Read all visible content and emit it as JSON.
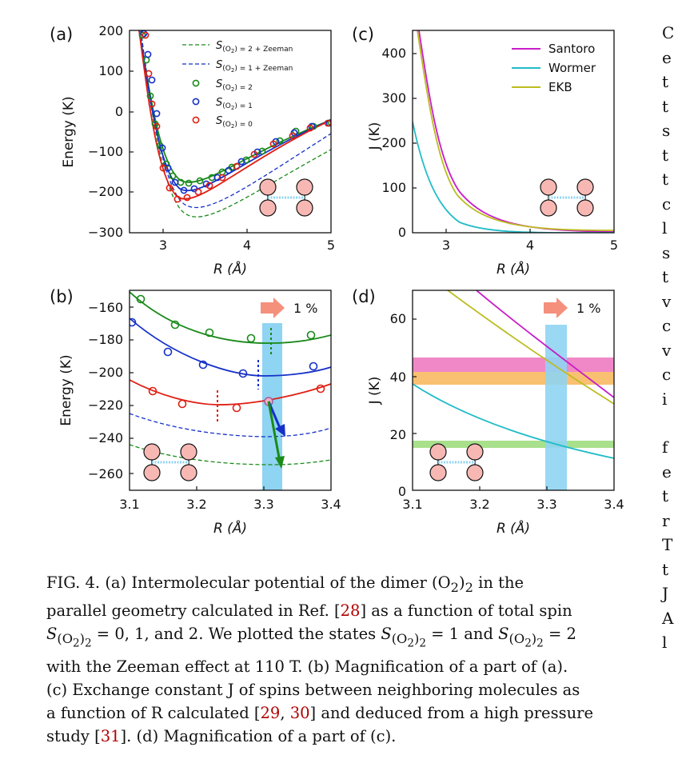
{
  "colors": {
    "green": "#1a8a1a",
    "blue": "#1530c8",
    "red": "#e01f14",
    "santoro": "#c81ec8",
    "wormer": "#22bcc8",
    "ekb": "#bcbc20",
    "band_blue": "#8fd4f2",
    "band_pink": "#f088c8",
    "band_orange": "#f8c070",
    "band_green": "#a8e08c",
    "arrow_salmon": "#f4907c",
    "molecule": "#f7b8b4"
  },
  "icons": {
    "molecule": "o2-dimer-icon",
    "arrow": "right-arrow-icon"
  },
  "chart_data": [
    {
      "panel": "(a)",
      "type": "line",
      "xlabel": "R (Å)",
      "ylabel": "Energy (K)",
      "xlim": [
        2.6,
        5.0
      ],
      "ylim": [
        -300,
        200
      ],
      "xticks": [
        "3",
        "4",
        "5"
      ],
      "yticks": [
        "200",
        "100",
        "0",
        "−100",
        "−200",
        "−300"
      ],
      "legend_position": "top-right",
      "legend": [
        "S(O2)2 = 2 + Zeeman",
        "S(O2)2 = 1 + Zeeman",
        "S(O2)2 = 2",
        "S(O2)2 = 1",
        "S(O2)2 = 0"
      ],
      "curve_minima": [
        {
          "series": "S=2",
          "x": 3.3,
          "y": -182
        },
        {
          "series": "S=1",
          "x": 3.3,
          "y": -201
        },
        {
          "series": "S=0",
          "x": 3.23,
          "y": -221
        },
        {
          "series": "S=1 + Zeeman",
          "x": 3.3,
          "y": -238
        },
        {
          "series": "S=2 + Zeeman",
          "x": 3.3,
          "y": -256
        }
      ]
    },
    {
      "panel": "(b)",
      "type": "line",
      "xlabel": "R (Å)",
      "ylabel": "Energy (K)",
      "xlim": [
        3.1,
        3.4
      ],
      "ylim": [
        -270,
        -150
      ],
      "xticks": [
        "3.1",
        "3.2",
        "3.3",
        "3.4"
      ],
      "yticks": [
        "−160",
        "−180",
        "−200",
        "−220",
        "−240",
        "−260"
      ],
      "annotation": "1 %",
      "highlight_x": [
        3.3,
        3.33
      ],
      "points": {
        "S2": [
          [
            3.12,
            -156
          ],
          [
            3.18,
            -171
          ],
          [
            3.22,
            -176
          ],
          [
            3.28,
            -180
          ],
          [
            3.37,
            -177
          ]
        ],
        "S1": [
          [
            3.1,
            -170
          ],
          [
            3.16,
            -188
          ],
          [
            3.21,
            -195
          ],
          [
            3.27,
            -200
          ],
          [
            3.375,
            -196
          ]
        ],
        "S0": [
          [
            3.14,
            -211
          ],
          [
            3.18,
            -218
          ],
          [
            3.26,
            -220
          ],
          [
            3.31,
            -216
          ],
          [
            3.385,
            -209
          ]
        ]
      },
      "minima_markers": [
        {
          "series": "S=2",
          "x": 3.31
        },
        {
          "series": "S=1",
          "x": 3.28
        },
        {
          "series": "S=0",
          "x": 3.23
        }
      ]
    },
    {
      "panel": "(c)",
      "type": "line",
      "xlabel": "R (Å)",
      "ylabel": "J (K)",
      "xlim": [
        2.6,
        5.0
      ],
      "ylim": [
        0,
        450
      ],
      "xticks": [
        "3",
        "4",
        "5"
      ],
      "yticks": [
        "400",
        "300",
        "200",
        "100",
        "0"
      ],
      "legend_position": "top-right",
      "series": [
        {
          "name": "Santoro"
        },
        {
          "name": "Wormer"
        },
        {
          "name": "EKB"
        }
      ]
    },
    {
      "panel": "(d)",
      "type": "line",
      "xlabel": "R (Å)",
      "ylabel": "J (K)",
      "xlim": [
        3.1,
        3.4
      ],
      "ylim": [
        0,
        70
      ],
      "xticks": [
        "3.1",
        "3.2",
        "3.3",
        "3.4"
      ],
      "yticks": [
        "60",
        "40",
        "20",
        "0"
      ],
      "annotation": "1 %",
      "highlight_x": [
        3.3,
        3.33
      ],
      "bands": [
        {
          "color": "pink",
          "y": [
            41,
            46
          ]
        },
        {
          "color": "orange",
          "y": [
            37,
            41
          ]
        },
        {
          "color": "green",
          "y": [
            15,
            17
          ]
        }
      ]
    }
  ],
  "text": {
    "labels": {
      "a": "(a)",
      "b": "(b)",
      "c": "(c)",
      "d": "(d)"
    },
    "legend_a": {
      "zeeman2": ") = 2 + Zeeman",
      "zeeman1": ") = 1 + Zeeman",
      "s2": ") = 2",
      "s1": ") = 1",
      "s0": ") = 0"
    },
    "legend_c": {
      "santoro": "Santoro",
      "wormer": "Wormer",
      "ekb": "EKB"
    },
    "pct": "1 %",
    "xlabel": "R (Å)",
    "ylabel_energy": "Energy (K)",
    "ylabel_j": "J (K)"
  },
  "caption": {
    "lines": [
      "FIG. 4.    (a) Intermolecular potential of the dimer (O",
      ")",
      " in the",
      "parallel geometry calculated in Ref. [",
      "28",
      "] as a function of total spin",
      " = 0, 1, and 2. We plotted the states ",
      " = 1 and ",
      " = 2",
      "with the Zeeman effect at 110 T. (b) Magnification of a part of (a).",
      "(c) Exchange constant J of spins between neighboring molecules as",
      "a function of R calculated [",
      "29",
      ", ",
      "30",
      "] and deduced from a high pressure",
      "study [",
      "31",
      "]. (d) Magnification of a part of (c)."
    ]
  },
  "sidetext": [
    "C",
    "e",
    "t",
    "t",
    "s",
    "t",
    "t",
    "c",
    "l",
    "s",
    "t",
    "v",
    "c",
    "v",
    "c",
    "i",
    "f",
    "e",
    "t",
    "r",
    "T",
    "t",
    "J",
    "A",
    "l"
  ]
}
